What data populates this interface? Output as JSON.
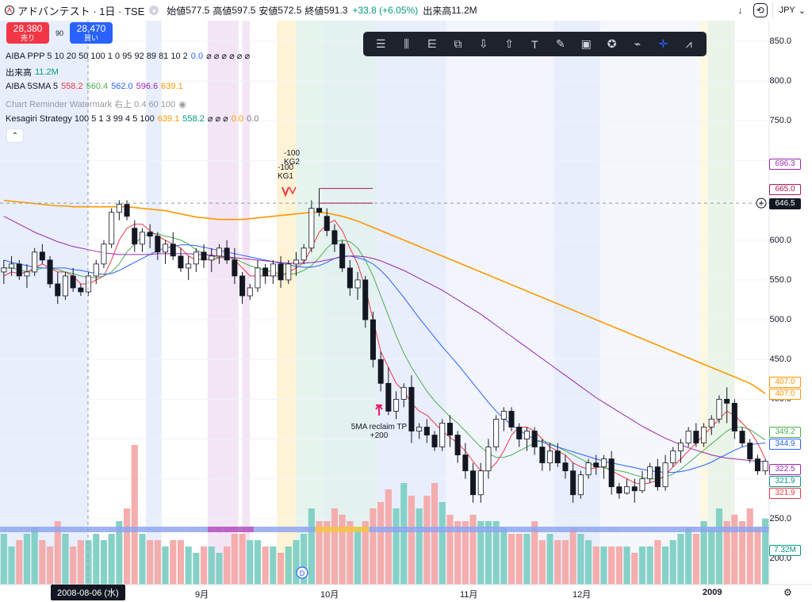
{
  "header": {
    "symbol": "アドバンテスト · 1日 · TSE",
    "open_label": "始値",
    "open": "577.5",
    "high_label": "高値",
    "high": "597.5",
    "low_label": "安値",
    "low": "572.5",
    "close_label": "終値",
    "close": "591.3",
    "change": "+33.8 (+6.05%)",
    "volume_label": "出来高",
    "volume": "11.2M",
    "currency": "JPY",
    "colors": {
      "up": "#089981",
      "down": "#f23645",
      "accent": "#2962ff"
    }
  },
  "trade": {
    "sell_price": "28,380",
    "sell_label": "売り",
    "spread": "90",
    "buy_price": "28,470",
    "buy_label": "買い"
  },
  "indicators": [
    {
      "name": "AIBA PPP 5 10 20 50 100 1 0 95 92 89 81 10 2",
      "values": [
        {
          "v": "0.0",
          "color": "#2962ff"
        }
      ],
      "icons": "⌀ ⌀ ⌀ ⌀ ⌀ ⌀"
    },
    {
      "name": "出来高",
      "values": [
        {
          "v": "11.2M",
          "color": "#089981"
        }
      ],
      "icons": ""
    },
    {
      "name": "AIBA 5SMA 5",
      "values": [
        {
          "v": "558.2",
          "color": "#f23645"
        },
        {
          "v": "560.4",
          "color": "#4caf50"
        },
        {
          "v": "562.0",
          "color": "#2962ff"
        },
        {
          "v": "596.6",
          "color": "#9c27b0"
        },
        {
          "v": "639.1",
          "color": "#ff9800"
        }
      ],
      "icons": ""
    },
    {
      "name": "Chart Reminder Watermark 右上 0.4 60 100",
      "values": [],
      "icons": "◉",
      "dim": true
    },
    {
      "name": "Kesagiri Strategy 100 5 1 3 99 4 5 100",
      "values": [
        {
          "v": "639.1",
          "color": "#ff9800"
        },
        {
          "v": "558.2",
          "color": "#089981"
        }
      ],
      "icons": "⌀ ⌀ ⌀",
      "tail": [
        {
          "v": "0.0",
          "color": "#ff9800"
        },
        {
          "v": "0.0",
          "color": "#787b86"
        }
      ]
    }
  ],
  "toolbar": {
    "tools": [
      "lines-icon",
      "fib-icon",
      "pitchfork-icon",
      "candle-bars-icon",
      "arrow-down-icon",
      "arrow-up-icon",
      "text-icon",
      "brush-icon",
      "note-icon",
      "star-icon",
      "fill-icon",
      "crosshair-icon",
      "trend-icon"
    ]
  },
  "price_axis": {
    "ticks": [
      "850.0",
      "800.0",
      "750.0",
      "600.0",
      "550.0",
      "500.0",
      "450.0",
      "400.0",
      "250.0",
      "200.0"
    ],
    "badges": [
      {
        "v": "696.3",
        "color": "#9c27b0",
        "fill": false
      },
      {
        "v": "665.0",
        "color": "#ad1457",
        "fill": false
      },
      {
        "v": "646.5",
        "color": "#131722",
        "fill": true
      },
      {
        "v": "407.0",
        "color": "#ff9800",
        "fill": false
      },
      {
        "v": "407.0",
        "color": "#ff9800",
        "fill": false
      },
      {
        "v": "349.2",
        "color": "#4caf50",
        "fill": false
      },
      {
        "v": "344.9",
        "color": "#2962ff",
        "fill": false
      },
      {
        "v": "322.5",
        "color": "#9c27b0",
        "fill": false
      },
      {
        "v": "321.9",
        "color": "#089981",
        "fill": false
      },
      {
        "v": "321.9",
        "color": "#f23645",
        "fill": false
      },
      {
        "v": "7.32M",
        "color": "#089981",
        "fill": false
      }
    ]
  },
  "time_axis": {
    "crosshair_date": "2008-08-06 (水)",
    "labels": [
      "9月",
      "10月",
      "11月",
      "12月",
      "2009"
    ]
  },
  "annotations": {
    "kg2": "-100\nKG2",
    "kg1": "-100\nKG1",
    "reclaim": "5MA reclaim TP\n+200",
    "event_marker": "D"
  },
  "chart_data": {
    "type": "candlestick",
    "title": "アドバンテスト · 1日 · TSE",
    "ylim": [
      180,
      870
    ],
    "candles": [
      [
        560,
        575,
        545,
        565
      ],
      [
        565,
        580,
        555,
        570
      ],
      [
        570,
        575,
        550,
        555
      ],
      [
        555,
        570,
        540,
        560
      ],
      [
        560,
        590,
        555,
        585
      ],
      [
        585,
        595,
        570,
        575
      ],
      [
        575,
        580,
        540,
        545
      ],
      [
        545,
        560,
        520,
        530
      ],
      [
        530,
        560,
        525,
        555
      ],
      [
        555,
        565,
        535,
        540
      ],
      [
        540,
        545,
        530,
        535
      ],
      [
        535,
        560,
        530,
        555
      ],
      [
        555,
        575,
        545,
        570
      ],
      [
        570,
        600,
        565,
        595
      ],
      [
        595,
        640,
        590,
        635
      ],
      [
        635,
        650,
        625,
        645
      ],
      [
        645,
        650,
        625,
        630
      ],
      [
        615,
        625,
        585,
        595
      ],
      [
        595,
        615,
        585,
        610
      ],
      [
        610,
        620,
        590,
        605
      ],
      [
        605,
        610,
        575,
        585
      ],
      [
        585,
        600,
        570,
        595
      ],
      [
        595,
        610,
        575,
        580
      ],
      [
        580,
        590,
        560,
        565
      ],
      [
        565,
        580,
        550,
        570
      ],
      [
        570,
        590,
        560,
        585
      ],
      [
        585,
        595,
        565,
        575
      ],
      [
        575,
        590,
        560,
        580
      ],
      [
        580,
        595,
        570,
        590
      ],
      [
        590,
        600,
        570,
        575
      ],
      [
        575,
        590,
        545,
        555
      ],
      [
        555,
        560,
        520,
        530
      ],
      [
        530,
        545,
        525,
        540
      ],
      [
        540,
        575,
        535,
        565
      ],
      [
        565,
        570,
        545,
        555
      ],
      [
        555,
        575,
        545,
        570
      ],
      [
        570,
        580,
        540,
        550
      ],
      [
        550,
        575,
        545,
        570
      ],
      [
        570,
        585,
        555,
        575
      ],
      [
        575,
        595,
        570,
        590
      ],
      [
        590,
        650,
        585,
        640
      ],
      [
        640,
        665,
        630,
        635
      ],
      [
        630,
        640,
        605,
        612
      ],
      [
        612,
        620,
        585,
        595
      ],
      [
        595,
        600,
        560,
        565
      ],
      [
        565,
        575,
        530,
        540
      ],
      [
        540,
        560,
        525,
        550
      ],
      [
        550,
        555,
        490,
        500
      ],
      [
        500,
        510,
        440,
        450
      ],
      [
        450,
        460,
        410,
        420
      ],
      [
        420,
        440,
        380,
        385
      ],
      [
        385,
        410,
        375,
        400
      ],
      [
        400,
        420,
        390,
        415
      ],
      [
        415,
        430,
        345,
        360
      ],
      [
        360,
        370,
        350,
        365
      ],
      [
        365,
        375,
        345,
        355
      ],
      [
        355,
        360,
        335,
        340
      ],
      [
        340,
        375,
        335,
        370
      ],
      [
        370,
        380,
        340,
        355
      ],
      [
        355,
        360,
        320,
        330
      ],
      [
        330,
        345,
        300,
        310
      ],
      [
        310,
        320,
        270,
        280
      ],
      [
        280,
        320,
        270,
        310
      ],
      [
        310,
        350,
        300,
        340
      ],
      [
        340,
        380,
        335,
        375
      ],
      [
        375,
        390,
        360,
        385
      ],
      [
        385,
        390,
        360,
        365
      ],
      [
        365,
        370,
        340,
        350
      ],
      [
        350,
        365,
        335,
        360
      ],
      [
        360,
        365,
        330,
        340
      ],
      [
        340,
        350,
        310,
        320
      ],
      [
        320,
        345,
        310,
        335
      ],
      [
        335,
        345,
        315,
        320
      ],
      [
        320,
        330,
        300,
        310
      ],
      [
        310,
        320,
        270,
        280
      ],
      [
        280,
        310,
        275,
        305
      ],
      [
        305,
        325,
        300,
        320
      ],
      [
        320,
        330,
        305,
        315
      ],
      [
        315,
        330,
        300,
        325
      ],
      [
        325,
        335,
        280,
        290
      ],
      [
        290,
        295,
        275,
        282
      ],
      [
        282,
        300,
        280,
        290
      ],
      [
        290,
        300,
        270,
        285
      ],
      [
        285,
        310,
        282,
        300
      ],
      [
        300,
        320,
        295,
        315
      ],
      [
        315,
        325,
        285,
        290
      ],
      [
        290,
        330,
        285,
        320
      ],
      [
        320,
        340,
        315,
        335
      ],
      [
        335,
        350,
        320,
        345
      ],
      [
        345,
        365,
        340,
        360
      ],
      [
        360,
        370,
        340,
        345
      ],
      [
        345,
        370,
        340,
        365
      ],
      [
        365,
        380,
        355,
        375
      ],
      [
        375,
        405,
        370,
        400
      ],
      [
        400,
        415,
        370,
        395
      ],
      [
        395,
        400,
        350,
        360
      ],
      [
        360,
        365,
        340,
        345
      ],
      [
        345,
        350,
        320,
        325
      ],
      [
        325,
        330,
        305,
        310
      ],
      [
        310,
        325,
        305,
        322
      ]
    ],
    "sma": {
      "5": [
        555,
        560,
        558,
        560,
        565,
        570,
        565,
        560,
        560,
        555,
        545,
        545,
        550,
        555,
        575,
        600,
        615,
        620,
        620,
        612,
        605,
        600,
        595,
        590,
        580,
        575,
        577,
        575,
        578,
        580,
        575,
        565,
        555,
        555,
        555,
        555,
        555,
        560,
        565,
        572,
        590,
        610,
        620,
        625,
        612,
        590,
        570,
        540,
        500,
        460,
        440,
        420,
        410,
        395,
        385,
        380,
        370,
        360,
        352,
        345,
        335,
        322,
        310,
        310,
        320,
        335,
        355,
        365,
        365,
        360,
        350,
        340,
        335,
        330,
        320,
        315,
        312,
        314,
        315,
        310,
        305,
        300,
        295,
        293,
        295,
        298,
        305,
        315,
        325,
        335,
        345,
        355,
        365,
        375,
        385,
        380,
        370,
        360,
        345,
        325
      ],
      "10": [
        565,
        565,
        563,
        560,
        562,
        565,
        565,
        563,
        560,
        558,
        555,
        553,
        553,
        555,
        560,
        570,
        585,
        595,
        605,
        608,
        608,
        605,
        603,
        600,
        595,
        588,
        583,
        580,
        578,
        578,
        577,
        572,
        568,
        565,
        562,
        560,
        557,
        557,
        558,
        562,
        568,
        578,
        590,
        598,
        600,
        598,
        590,
        575,
        555,
        530,
        505,
        480,
        458,
        440,
        425,
        410,
        398,
        388,
        378,
        370,
        360,
        350,
        340,
        332,
        327,
        327,
        330,
        335,
        340,
        345,
        348,
        345,
        340,
        335,
        330,
        325,
        320,
        316,
        314,
        312,
        310,
        308,
        305,
        302,
        300,
        300,
        302,
        306,
        312,
        320,
        328,
        336,
        344,
        352,
        360,
        365,
        365,
        362,
        355,
        349
      ],
      "20": [
        575,
        572,
        570,
        568,
        566,
        565,
        565,
        565,
        565,
        563,
        562,
        560,
        558,
        557,
        558,
        562,
        567,
        572,
        577,
        582,
        587,
        590,
        592,
        594,
        594,
        593,
        591,
        589,
        587,
        585,
        583,
        581,
        579,
        577,
        575,
        573,
        571,
        569,
        567,
        566,
        566,
        568,
        572,
        577,
        580,
        580,
        578,
        575,
        570,
        562,
        552,
        540,
        528,
        515,
        502,
        490,
        478,
        466,
        455,
        444,
        432,
        420,
        408,
        396,
        385,
        376,
        368,
        361,
        355,
        350,
        346,
        343,
        340,
        337,
        334,
        331,
        328,
        325,
        322,
        320,
        318,
        316,
        314,
        312,
        310,
        309,
        308,
        308,
        309,
        311,
        314,
        317,
        321,
        326,
        331,
        336,
        340,
        343,
        344,
        345
      ],
      "50": [
        630,
        625,
        620,
        615,
        610,
        606,
        602,
        598,
        595,
        592,
        590,
        588,
        586,
        584,
        583,
        582,
        582,
        582,
        582,
        582,
        583,
        583,
        583,
        583,
        583,
        582,
        582,
        581,
        580,
        579,
        578,
        577,
        576,
        575,
        574,
        573,
        572,
        571,
        571,
        571,
        572,
        573,
        575,
        577,
        579,
        580,
        580,
        579,
        577,
        574,
        570,
        566,
        562,
        557,
        552,
        547,
        542,
        537,
        531,
        525,
        519,
        513,
        507,
        500,
        493,
        486,
        479,
        472,
        465,
        458,
        451,
        444,
        437,
        430,
        423,
        416,
        409,
        402,
        396,
        390,
        384,
        378,
        372,
        366,
        361,
        356,
        351,
        347,
        343,
        339,
        336,
        333,
        330,
        328,
        326,
        325,
        324,
        323,
        322,
        322
      ],
      "200": [
        650,
        649,
        648,
        647,
        646,
        645,
        644,
        643,
        643,
        642,
        642,
        642,
        642,
        642,
        642,
        642,
        642,
        641,
        640,
        639,
        638,
        637,
        635,
        633,
        631,
        629,
        628,
        627,
        626,
        626,
        626,
        626,
        627,
        628,
        629,
        630,
        631,
        632,
        633,
        634,
        635,
        635,
        634,
        632,
        630,
        627,
        624,
        620,
        616,
        612,
        608,
        604,
        600,
        596,
        592,
        588,
        584,
        580,
        576,
        572,
        568,
        564,
        560,
        556,
        552,
        548,
        544,
        540,
        536,
        532,
        528,
        524,
        520,
        516,
        512,
        508,
        504,
        500,
        496,
        492,
        488,
        484,
        480,
        476,
        472,
        468,
        464,
        460,
        456,
        452,
        448,
        444,
        440,
        436,
        432,
        428,
        424,
        420,
        414,
        407
      ]
    },
    "volume": [
      40,
      30,
      35,
      40,
      45,
      35,
      30,
      50,
      40,
      30,
      35,
      35,
      40,
      35,
      40,
      50,
      60,
      110,
      40,
      35,
      35,
      30,
      35,
      35,
      30,
      25,
      30,
      30,
      25,
      30,
      40,
      40,
      35,
      35,
      30,
      30,
      25,
      30,
      35,
      40,
      60,
      50,
      50,
      60,
      55,
      50,
      45,
      50,
      60,
      65,
      75,
      60,
      80,
      70,
      60,
      70,
      80,
      65,
      55,
      50,
      50,
      55,
      50,
      50,
      50,
      45,
      40,
      40,
      40,
      50,
      35,
      40,
      35,
      35,
      45,
      40,
      35,
      30,
      30,
      30,
      30,
      30,
      25,
      30,
      30,
      35,
      30,
      35,
      40,
      45,
      40,
      50,
      45,
      60,
      50,
      55,
      50,
      60,
      45,
      52
    ]
  }
}
